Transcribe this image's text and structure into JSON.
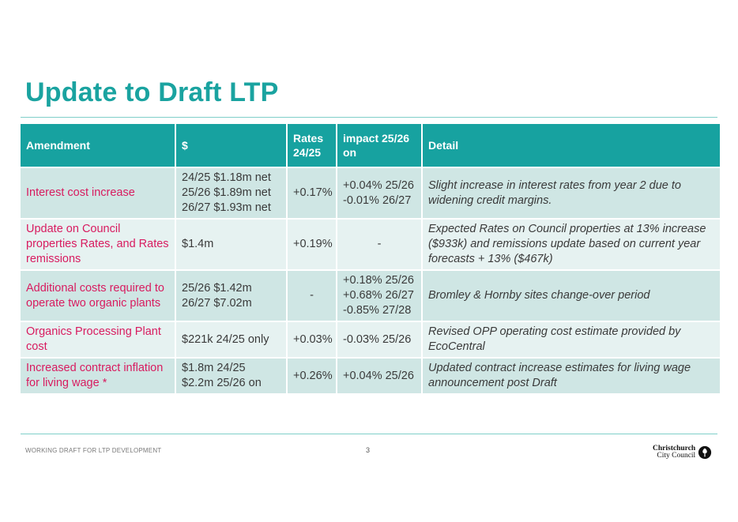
{
  "title": "Update to Draft LTP",
  "table": {
    "headers": [
      "Amendment",
      "$",
      "Rates 24/25",
      "impact 25/26 on",
      "Detail"
    ],
    "rows": [
      {
        "amendment": "Interest cost increase",
        "amount": "24/25 $1.18m net\n25/26 $1.89m net\n26/27 $1.93m net",
        "rates": "+0.17%",
        "impact": "+0.04% 25/26\n-0.01% 26/27",
        "detail": "Slight increase in interest rates from year 2 due to widening credit margins."
      },
      {
        "amendment": "Update on Council properties Rates, and Rates remissions",
        "amount": "$1.4m",
        "rates": "+0.19%",
        "impact": "-",
        "detail": "Expected Rates on Council properties at 13% increase ($933k) and remissions update based on current year forecasts + 13% ($467k)"
      },
      {
        "amendment": "Additional costs required to operate two organic plants",
        "amount": "25/26 $1.42m\n26/27 $7.02m",
        "rates": "-",
        "impact": "+0.18% 25/26\n+0.68% 26/27\n-0.85% 27/28",
        "detail": "Bromley & Hornby sites change-over period"
      },
      {
        "amendment": "Organics Processing Plant cost",
        "amount": "$221k 24/25 only",
        "rates": "+0.03%",
        "impact": "-0.03% 25/26",
        "detail": "Revised OPP operating cost estimate provided by EcoCentral"
      },
      {
        "amendment": "Increased contract inflation for living wage *",
        "amount": "$1.8m  24/25\n$2.2m 25/26 on",
        "rates": "+0.26%",
        "impact": "+0.04% 25/26",
        "detail": "Updated contract increase estimates for living wage announcement post Draft"
      }
    ]
  },
  "footer": {
    "left_text": "WORKING DRAFT FOR LTP DEVELOPMENT",
    "page_number": "3",
    "logo_line1": "Christchurch",
    "logo_line2": "City Council",
    "logo_icon": "tree-icon"
  },
  "colors": {
    "accent": "#1aa3a0",
    "header_bg": "#17a2a0",
    "row_dark": "#cfe6e4",
    "row_light": "#e6f2f1",
    "amendment_text": "#d81b5f"
  }
}
